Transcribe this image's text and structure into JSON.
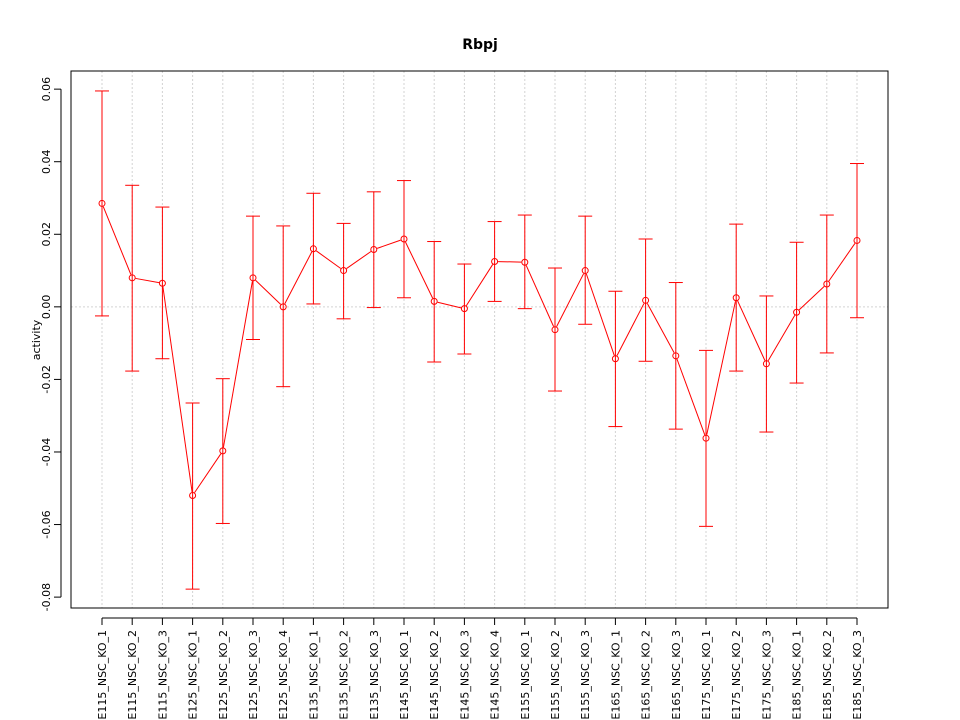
{
  "chart_data": {
    "type": "line",
    "title": "Rbpj",
    "xlabel": "",
    "ylabel": "activity",
    "ylim": [
      -0.083,
      0.065
    ],
    "yticks": [
      -0.08,
      -0.06,
      -0.04,
      -0.02,
      0.0,
      0.02,
      0.04,
      0.06
    ],
    "ytick_labels": [
      "-0.08",
      "-0.06",
      "-0.04",
      "-0.02",
      "0.00",
      "0.02",
      "0.04",
      "0.06"
    ],
    "grid": true,
    "categories": [
      "E115_NSC_KO_1",
      "E115_NSC_KO_2",
      "E115_NSC_KO_3",
      "E125_NSC_KO_1",
      "E125_NSC_KO_2",
      "E125_NSC_KO_3",
      "E125_NSC_KO_4",
      "E135_NSC_KO_1",
      "E135_NSC_KO_2",
      "E135_NSC_KO_3",
      "E145_NSC_KO_1",
      "E145_NSC_KO_2",
      "E145_NSC_KO_3",
      "E145_NSC_KO_4",
      "E155_NSC_KO_1",
      "E155_NSC_KO_2",
      "E155_NSC_KO_3",
      "E165_NSC_KO_1",
      "E165_NSC_KO_2",
      "E165_NSC_KO_3",
      "E175_NSC_KO_1",
      "E175_NSC_KO_2",
      "E175_NSC_KO_3",
      "E185_NSC_KO_1",
      "E185_NSC_KO_2",
      "E185_NSC_KO_3"
    ],
    "values": [
      0.0285,
      0.008,
      0.0065,
      -0.052,
      -0.0397,
      0.008,
      0.0,
      0.016,
      0.01,
      0.0158,
      0.0187,
      0.0015,
      -0.0005,
      0.0125,
      0.0123,
      -0.0063,
      0.01,
      -0.0143,
      0.0018,
      -0.0135,
      -0.0362,
      0.0025,
      -0.0157,
      -0.0015,
      0.0063,
      0.0183
    ],
    "lower": [
      -0.0025,
      -0.0177,
      -0.0143,
      -0.0778,
      -0.0597,
      -0.009,
      -0.022,
      0.0008,
      -0.0033,
      -0.0002,
      0.0025,
      -0.0152,
      -0.013,
      0.0015,
      -0.0005,
      -0.0232,
      -0.0048,
      -0.033,
      -0.015,
      -0.0337,
      -0.0605,
      -0.0177,
      -0.0345,
      -0.021,
      -0.0127,
      -0.003
    ],
    "upper": [
      0.0595,
      0.0335,
      0.0275,
      -0.0265,
      -0.0198,
      0.025,
      0.0223,
      0.0313,
      0.023,
      0.0317,
      0.0348,
      0.018,
      0.0118,
      0.0235,
      0.0253,
      0.0107,
      0.025,
      0.0043,
      0.0187,
      0.0067,
      -0.012,
      0.0228,
      0.003,
      0.0178,
      0.0253,
      0.0395
    ],
    "color": "#ff0000",
    "grid_color": "#d3d3d3"
  }
}
